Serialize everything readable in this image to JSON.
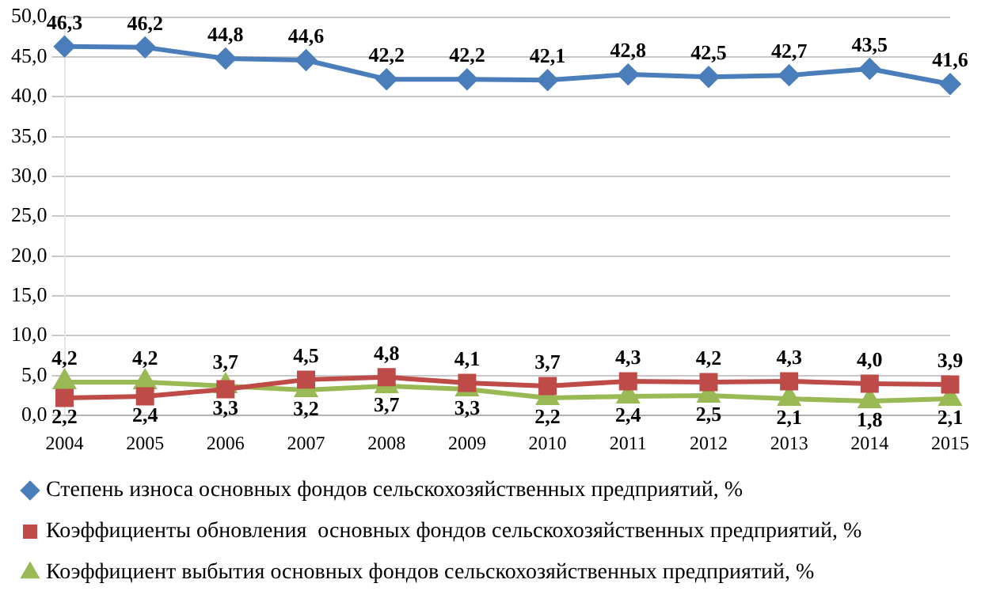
{
  "chart_data": {
    "type": "line",
    "categories": [
      "2004",
      "2005",
      "2006",
      "2007",
      "2008",
      "2009",
      "2010",
      "2011",
      "2012",
      "2013",
      "2014",
      "2015"
    ],
    "series": [
      {
        "name": "Степень износа основных фондов сельскохозяйственных предприятий, %",
        "color": "#4a7ebb",
        "marker": "diamond",
        "values": [
          46.3,
          46.2,
          44.8,
          44.6,
          42.2,
          42.2,
          42.1,
          42.8,
          42.5,
          42.7,
          43.5,
          41.6
        ],
        "value_labels": [
          "46,3",
          "46,2",
          "44,8",
          "44,6",
          "42,2",
          "42,2",
          "42,1",
          "42,8",
          "42,5",
          "42,7",
          "43,5",
          "41,6"
        ]
      },
      {
        "name": "Коэффициенты обновления  основных фондов сельскохозяйственных предприятий, %",
        "color": "#be4b48",
        "marker": "square",
        "values": [
          2.2,
          2.4,
          3.3,
          4.5,
          4.8,
          4.1,
          3.7,
          4.3,
          4.2,
          4.3,
          4.0,
          3.9
        ],
        "value_labels": [
          "2,2",
          "2,4",
          "3,3",
          "4,5",
          "4,8",
          "4,1",
          "3,7",
          "4,3",
          "4,2",
          "4,3",
          "4,0",
          "3,9"
        ]
      },
      {
        "name": "Коэффициент выбытия основных фондов сельскохозяйственных предприятий, %",
        "color": "#98b954",
        "marker": "triangle",
        "values": [
          4.2,
          4.2,
          3.7,
          3.2,
          3.7,
          3.3,
          2.2,
          2.4,
          2.5,
          2.1,
          1.8,
          2.1
        ],
        "value_labels": [
          "4,2",
          "4,2",
          "3,7",
          "3,2",
          "3,7",
          "3,3",
          "2,2",
          "2,4",
          "2,5",
          "2,1",
          "1,8",
          "2,1"
        ]
      }
    ],
    "ylim": [
      0,
      50
    ],
    "yticks": [
      {
        "value": 0,
        "label": "0,0"
      },
      {
        "value": 5,
        "label": "5,0"
      },
      {
        "value": 10,
        "label": "10,0"
      },
      {
        "value": 15,
        "label": "15,0"
      },
      {
        "value": 20,
        "label": "20,0"
      },
      {
        "value": 25,
        "label": "25,0"
      },
      {
        "value": 30,
        "label": "30,0"
      },
      {
        "value": 35,
        "label": "35,0"
      },
      {
        "value": 40,
        "label": "40,0"
      },
      {
        "value": 45,
        "label": "45,0"
      },
      {
        "value": 50,
        "label": "50,0"
      }
    ],
    "grid": "y",
    "legend": "bottom"
  }
}
